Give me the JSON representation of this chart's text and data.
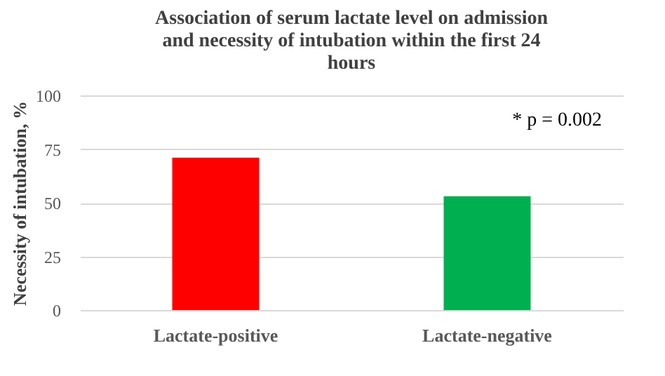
{
  "chart_data": {
    "type": "bar",
    "title": "Association of serum lactate level on admission\nand necessity of intubation within the first 24\nhours",
    "ylabel": "Necessity of intubation, %",
    "categories": [
      "Lactate-positive",
      "Lactate-negative"
    ],
    "values": [
      71,
      53
    ],
    "colors": [
      "#ff0000",
      "#00b050"
    ],
    "ylim": [
      0,
      100
    ],
    "yticks": [
      0,
      25,
      50,
      75,
      100
    ],
    "grid": "y",
    "annotations": [
      "* p = 0.002"
    ]
  }
}
